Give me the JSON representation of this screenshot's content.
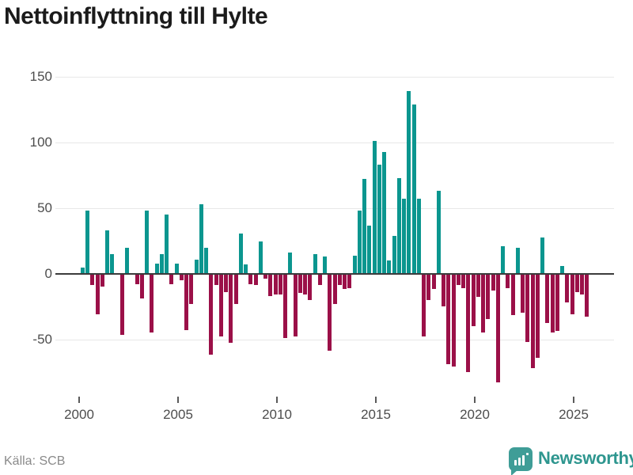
{
  "title": "Nettoinflyttning till Hylte",
  "source": "Källa: SCB",
  "branding": {
    "name": "Newsworthy",
    "icon": "newsworthy-bubble-chart-icon"
  },
  "colors": {
    "positive": "#0b968f",
    "negative": "#9b1048",
    "logo": "#3f9d97",
    "logo_text": "#2e968f",
    "zero_line": "#3b3b3b",
    "gridline": "#e8e8e8"
  },
  "chart_data": {
    "type": "bar",
    "title": "Nettoinflyttning till Hylte",
    "xlabel": "",
    "ylabel": "",
    "frequency": "quarterly",
    "start_year": 2000,
    "y_ticks": [
      150,
      100,
      50,
      0,
      -50
    ],
    "x_ticks": [
      2000,
      2005,
      2010,
      2015,
      2020,
      2025
    ],
    "ylim": [
      -100,
      165
    ],
    "grid": true,
    "legend": false,
    "values": [
      0,
      5,
      48,
      -8,
      -30,
      -9,
      33,
      15,
      0,
      -46,
      20,
      0,
      -7,
      -18,
      48,
      -44,
      8,
      15,
      45,
      -7,
      8,
      -4,
      -42,
      -22,
      11,
      53,
      20,
      -61,
      -8,
      -47,
      -13,
      -52,
      -22,
      31,
      7,
      -7,
      -8,
      25,
      -3,
      -16,
      -15,
      -15,
      -48,
      16,
      -47,
      -14,
      -15,
      -19,
      15,
      -8,
      13,
      -58,
      -22,
      -8,
      -11,
      -10,
      14,
      48,
      72,
      37,
      101,
      83,
      93,
      10,
      29,
      73,
      57,
      139,
      129,
      57,
      -47,
      -19,
      -11,
      63,
      -24,
      -68,
      -70,
      -8,
      -10,
      -74,
      -39,
      -17,
      -44,
      -34,
      -12,
      -82,
      21,
      -10,
      -31,
      20,
      -29,
      -51,
      -71,
      -63,
      28,
      -37,
      -44,
      -43,
      6,
      -21,
      -30,
      -13,
      -15,
      -32
    ]
  }
}
